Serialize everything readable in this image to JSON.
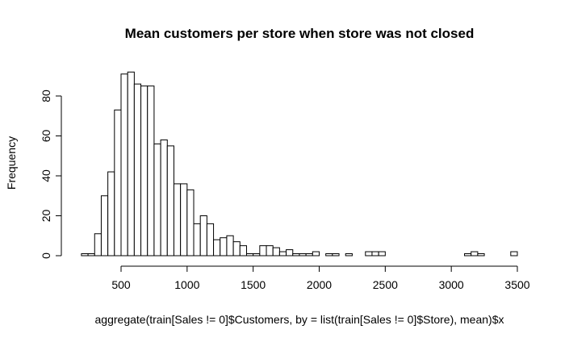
{
  "chart_data": {
    "type": "bar",
    "title": "Mean customers per store when store was not closed",
    "xlabel": "aggregate(train[Sales != 0]$Customers, by = list(train[Sales != 0]$Store), mean)$x",
    "ylabel": "Frequency",
    "bin_width": 50,
    "bin_start": 200,
    "values": [
      1,
      1,
      11,
      30,
      42,
      73,
      91,
      92,
      86,
      85,
      85,
      56,
      58,
      55,
      36,
      36,
      33,
      16,
      20,
      16,
      8,
      9,
      10,
      7,
      5,
      1,
      1,
      5,
      5,
      4,
      2,
      3,
      1,
      1,
      1,
      2,
      0,
      1,
      1,
      0,
      1,
      0,
      0,
      2,
      2,
      2,
      0,
      0,
      0,
      0,
      0,
      0,
      0,
      0,
      0,
      0,
      0,
      0,
      1,
      2,
      1,
      0,
      0,
      0,
      0,
      2
    ],
    "xlim": [
      200,
      3500
    ],
    "ylim": [
      0,
      92
    ],
    "x_ticks": [
      "500",
      "1000",
      "1500",
      "2000",
      "2500",
      "3000",
      "3500"
    ],
    "y_ticks": [
      "0",
      "20",
      "40",
      "60",
      "80"
    ],
    "grid": false
  }
}
